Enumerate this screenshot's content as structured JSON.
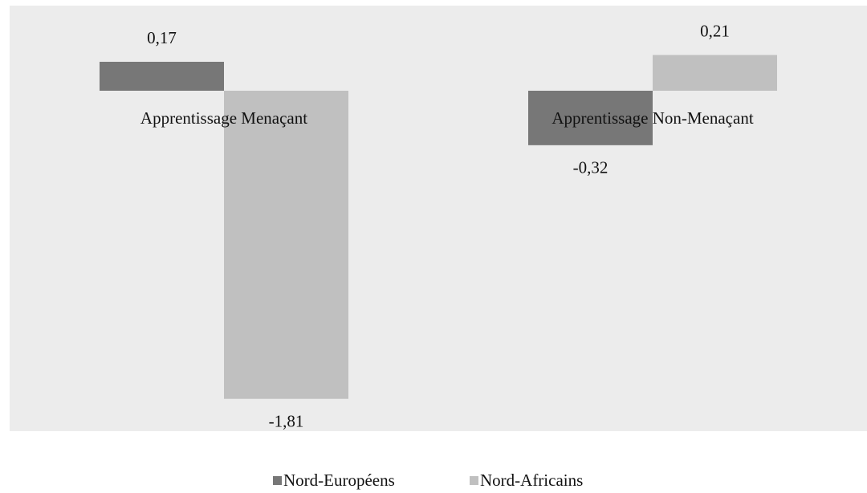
{
  "chart_data": {
    "type": "bar",
    "categories": [
      "Apprentissage Menaçant",
      "Apprentissage Non-Menaçant"
    ],
    "series": [
      {
        "name": "Nord-Européens",
        "color": "#777777",
        "values": [
          0.17,
          -0.32
        ],
        "value_labels": [
          "0,17",
          "-0,32"
        ]
      },
      {
        "name": "Nord-Africains",
        "color": "#c0c0c0",
        "values": [
          -1.81,
          0.21
        ],
        "value_labels": [
          "-1,81",
          "0,21"
        ]
      }
    ],
    "ylim": [
      -2,
      0.5
    ],
    "legend": "bottom"
  }
}
